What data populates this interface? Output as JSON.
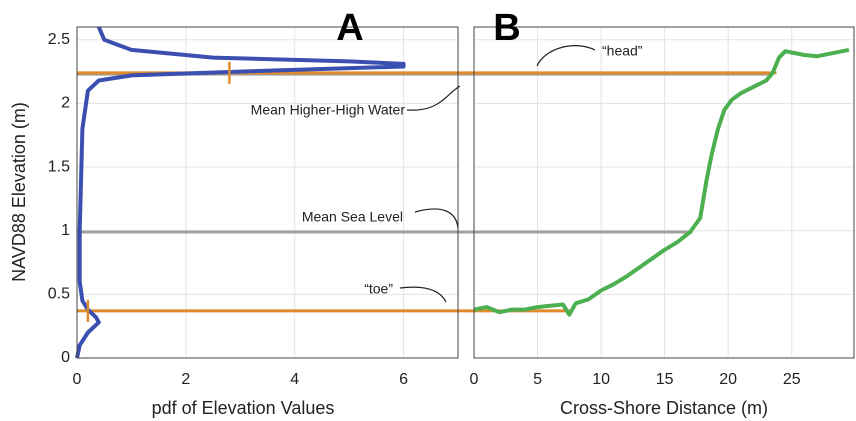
{
  "chart_data": [
    {
      "type": "line",
      "panel_label": "A",
      "x_label": "pdf of Elevation Values",
      "y_label": "NAVD88 Elevation (m)",
      "xlim": [
        0,
        7
      ],
      "xticks": [
        0,
        2,
        4,
        6
      ],
      "ylim": [
        0,
        2.6
      ],
      "yticks": [
        0,
        0.5,
        1,
        1.5,
        2,
        2.5
      ],
      "grid": true,
      "color": "#3b4fb0",
      "x": [
        0.4,
        0.5,
        1.0,
        2.5,
        5.0,
        6.0,
        6.0,
        3.0,
        1.0,
        0.4,
        0.2,
        0.1,
        0.05,
        0.05,
        0.1,
        0.2,
        0.35,
        0.4,
        0.2,
        0.05,
        0
      ],
      "values": [
        2.6,
        2.5,
        2.42,
        2.36,
        2.33,
        2.31,
        2.29,
        2.25,
        2.22,
        2.18,
        2.1,
        1.8,
        1.0,
        0.6,
        0.45,
        0.38,
        0.32,
        0.28,
        0.2,
        0.1,
        0
      ],
      "markers": {
        "color": "#e08a2c",
        "x": [
          2.8,
          0.2
        ],
        "values": [
          2.24,
          0.37
        ]
      }
    },
    {
      "type": "line",
      "panel_label": "B",
      "x_label": "Cross-Shore Distance (m)",
      "xlim": [
        0,
        29.9
      ],
      "xticks": [
        0,
        5,
        10,
        15,
        20,
        25
      ],
      "ylim": [
        0,
        2.6
      ],
      "yticks": [
        0,
        0.5,
        1,
        1.5,
        2,
        2.5
      ],
      "grid": true,
      "color": "#4caf50",
      "x": [
        0,
        1,
        2,
        3,
        4,
        5,
        6,
        7,
        7.5,
        8,
        9,
        10,
        11,
        12,
        13,
        14,
        15,
        16,
        17,
        17.8,
        18.3,
        18.7,
        19.2,
        19.7,
        20.3,
        21,
        22,
        23,
        23.5,
        24,
        24.5,
        25,
        26,
        27,
        28,
        29.5
      ],
      "values": [
        0.38,
        0.4,
        0.36,
        0.38,
        0.38,
        0.4,
        0.41,
        0.42,
        0.34,
        0.43,
        0.46,
        0.53,
        0.58,
        0.64,
        0.71,
        0.78,
        0.85,
        0.91,
        0.99,
        1.1,
        1.4,
        1.6,
        1.8,
        1.95,
        2.03,
        2.08,
        2.13,
        2.18,
        2.24,
        2.36,
        2.41,
        2.4,
        2.38,
        2.37,
        2.39,
        2.42
      ]
    }
  ],
  "reference_lines": [
    {
      "value": 2.23,
      "x_end": 23.5,
      "color": "#a0a0a0"
    },
    {
      "value": 0.99,
      "x_end": 17.2,
      "color": "#a0a0a0"
    },
    {
      "value": 2.24,
      "x_end": 23.8,
      "color": "#e08a2c"
    },
    {
      "value": 0.37,
      "x_end": 7.8,
      "color": "#e08a2c"
    }
  ],
  "annotations": {
    "mhhw": "Mean Higher-High Water",
    "msl": "Mean Sea Level",
    "toe": "“toe”",
    "head": "“head”"
  }
}
